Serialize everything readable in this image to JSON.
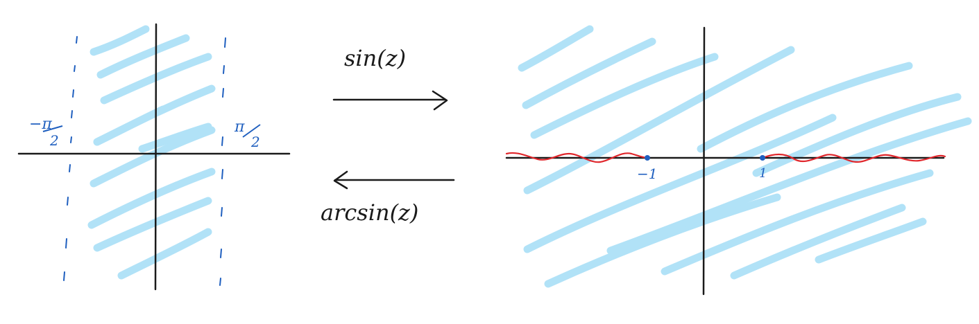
{
  "left_panel": {
    "label_left_num": "−π",
    "label_left_den": "2",
    "label_right_num": "π",
    "label_right_den": "2"
  },
  "arrows": {
    "forward_label": "sin(z)",
    "backward_label": "arcsin(z)"
  },
  "right_panel": {
    "point_neg_label": "−1",
    "point_pos_label": "1"
  },
  "colors": {
    "shade": "#a9dff7",
    "axis": "#1a1a1a",
    "boundary": "#1f5fbf",
    "branch_cut": "#e0262b",
    "point": "#1f5fbf"
  }
}
